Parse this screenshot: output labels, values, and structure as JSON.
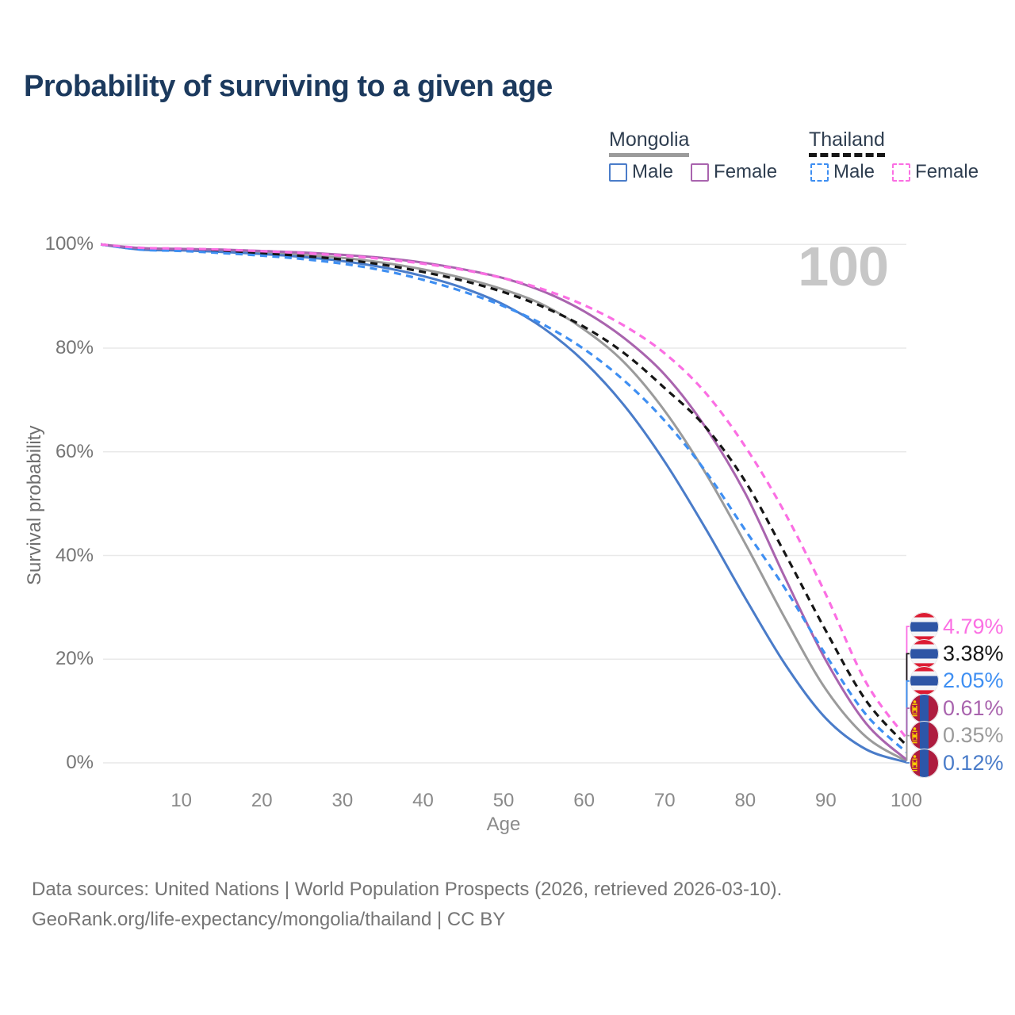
{
  "page": {
    "title": "Probability of surviving to a given age"
  },
  "legend": {
    "groups": [
      {
        "country": "Mongolia",
        "line_style": "solid",
        "line_color": "#9b9b9b",
        "items": [
          {
            "label": "Male",
            "color": "#4a7cc9",
            "dashed": false
          },
          {
            "label": "Female",
            "color": "#a964ae",
            "dashed": false
          }
        ]
      },
      {
        "country": "Thailand",
        "line_style": "dashed",
        "line_color": "#161616",
        "items": [
          {
            "label": "Male",
            "color": "#3f8ff2",
            "dashed": true
          },
          {
            "label": "Female",
            "color": "#fb6fe3",
            "dashed": true
          }
        ]
      }
    ]
  },
  "chart_data": {
    "type": "line",
    "title": "Probability of surviving to a given age",
    "xlabel": "Age",
    "ylabel": "Survival probability",
    "xlim": [
      0,
      100
    ],
    "ylim": [
      0,
      100
    ],
    "x_ticks": [
      10,
      20,
      30,
      40,
      50,
      60,
      70,
      80,
      90,
      100
    ],
    "y_ticks": [
      0,
      20,
      40,
      60,
      80,
      100
    ],
    "y_tick_suffix": "%",
    "grid": "horizontal",
    "legend_position": "top-right",
    "watermark": "100",
    "x": [
      0,
      5,
      10,
      15,
      20,
      25,
      30,
      35,
      40,
      45,
      50,
      55,
      60,
      65,
      70,
      75,
      80,
      85,
      90,
      95,
      100
    ],
    "series": [
      {
        "name": "Thailand Female",
        "country": "Thailand",
        "sex": "Female",
        "flag": "thailand",
        "color": "#fb6fe3",
        "dashed": true,
        "end_label": "4.79%",
        "end_value": 4.79,
        "values": [
          100,
          99.35,
          99.2,
          99.0,
          98.7,
          98.35,
          97.85,
          97.2,
          96.3,
          95.1,
          93.5,
          91.3,
          88.3,
          84.3,
          79.0,
          71.5,
          61.0,
          48.0,
          32.5,
          15.5,
          4.79
        ]
      },
      {
        "name": "Thailand Both sexes",
        "country": "Thailand",
        "sex": "Both",
        "flag": "thailand",
        "color": "#161616",
        "dashed": true,
        "end_label": "3.38%",
        "end_value": 3.38,
        "values": [
          100,
          99.2,
          99.0,
          98.7,
          98.3,
          97.8,
          97.1,
          96.1,
          94.7,
          93.0,
          90.8,
          87.9,
          84.1,
          79.0,
          72.3,
          64.9,
          54.3,
          40.2,
          25.5,
          12.0,
          3.38
        ]
      },
      {
        "name": "Thailand Male",
        "country": "Thailand",
        "sex": "Male",
        "flag": "thailand",
        "color": "#3f8ff2",
        "dashed": true,
        "end_label": "2.05%",
        "end_value": 2.05,
        "values": [
          100,
          99.0,
          98.75,
          98.35,
          97.85,
          97.2,
          96.3,
          95.0,
          93.2,
          90.9,
          88.1,
          84.5,
          79.8,
          73.7,
          66.0,
          56.4,
          44.9,
          33.5,
          20.8,
          9.3,
          2.05
        ]
      },
      {
        "name": "Mongolia Female",
        "country": "Mongolia",
        "sex": "Female",
        "flag": "mongolia",
        "color": "#a964ae",
        "dashed": false,
        "end_label": "0.61%",
        "end_value": 0.61,
        "values": [
          100,
          99.3,
          99.15,
          99.0,
          98.75,
          98.45,
          98.0,
          97.4,
          96.5,
          95.2,
          93.5,
          90.9,
          87.1,
          81.9,
          74.9,
          64.9,
          52.0,
          35.5,
          19.8,
          7.6,
          0.61
        ]
      },
      {
        "name": "Mongolia Both sexes",
        "country": "Mongolia",
        "sex": "Both",
        "flag": "mongolia",
        "color": "#9b9b9b",
        "dashed": false,
        "end_label": "0.35%",
        "end_value": 0.35,
        "values": [
          100,
          99.15,
          99.0,
          98.75,
          98.45,
          98.0,
          97.4,
          96.5,
          95.2,
          93.5,
          91.3,
          88.3,
          83.6,
          77.2,
          67.9,
          56.1,
          42.3,
          27.7,
          14.2,
          5.0,
          0.35
        ]
      },
      {
        "name": "Mongolia Male",
        "country": "Mongolia",
        "sex": "Male",
        "flag": "mongolia",
        "color": "#4a7cc9",
        "dashed": false,
        "end_label": "0.12%",
        "end_value": 0.12,
        "values": [
          100,
          99.0,
          98.85,
          98.55,
          98.15,
          97.6,
          96.8,
          95.6,
          93.9,
          91.6,
          88.4,
          83.8,
          77.4,
          68.9,
          58.1,
          45.4,
          31.8,
          18.9,
          8.6,
          2.6,
          0.12
        ]
      }
    ],
    "flag_colors": {
      "thailand": {
        "red": "#dc1c33",
        "white": "#f4f5f8",
        "blue": "#2e55a5"
      },
      "mongolia": {
        "red": "#ae1c3f",
        "blue": "#2c56a9",
        "yellow": "#f9cf02"
      }
    }
  },
  "footer": {
    "line1": "Data sources: United Nations | World Population Prospects (2026, retrieved 2026-03-10).",
    "line2": "GeoRank.org/life-expectancy/mongolia/thailand | CC BY"
  }
}
